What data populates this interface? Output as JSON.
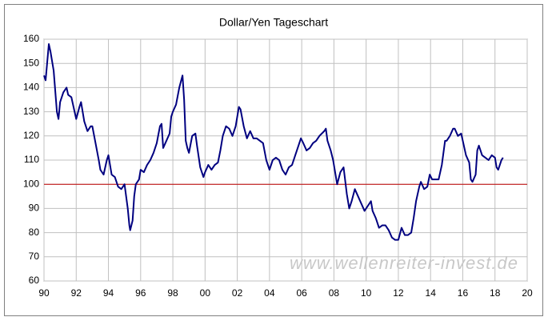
{
  "chart_data": {
    "type": "line",
    "title": "Dollar/Yen Tageschart",
    "watermark": "www.wellenreiter-invest.de",
    "color": "#000080",
    "grid": true,
    "hline": {
      "value": 100,
      "color": "#c00000"
    },
    "xlim": [
      1990,
      2020
    ],
    "xticks": [
      {
        "value": 1990,
        "label": "90"
      },
      {
        "value": 1992,
        "label": "92"
      },
      {
        "value": 1994,
        "label": "94"
      },
      {
        "value": 1996,
        "label": "96"
      },
      {
        "value": 1998,
        "label": "98"
      },
      {
        "value": 2000,
        "label": "00"
      },
      {
        "value": 2002,
        "label": "02"
      },
      {
        "value": 2004,
        "label": "04"
      },
      {
        "value": 2006,
        "label": "06"
      },
      {
        "value": 2008,
        "label": "08"
      },
      {
        "value": 2010,
        "label": "10"
      },
      {
        "value": 2012,
        "label": "12"
      },
      {
        "value": 2014,
        "label": "14"
      },
      {
        "value": 2016,
        "label": "16"
      },
      {
        "value": 2018,
        "label": "18"
      },
      {
        "value": 2020,
        "label": "20"
      }
    ],
    "ylim": [
      60,
      160
    ],
    "yticks": [
      60,
      70,
      80,
      90,
      100,
      110,
      120,
      130,
      140,
      150,
      160
    ],
    "x": [
      1990.0,
      1990.1,
      1990.3,
      1990.4,
      1990.6,
      1990.8,
      1990.9,
      1991.0,
      1991.2,
      1991.4,
      1991.5,
      1991.7,
      1991.9,
      1992.0,
      1992.2,
      1992.3,
      1992.5,
      1992.7,
      1992.9,
      1993.0,
      1993.2,
      1993.4,
      1993.5,
      1993.7,
      1993.9,
      1994.0,
      1994.2,
      1994.4,
      1994.6,
      1994.8,
      1995.0,
      1995.2,
      1995.3,
      1995.35,
      1995.5,
      1995.6,
      1995.7,
      1995.9,
      1996.0,
      1996.2,
      1996.4,
      1996.6,
      1996.8,
      1997.0,
      1997.2,
      1997.3,
      1997.4,
      1997.6,
      1997.8,
      1997.9,
      1998.0,
      1998.2,
      1998.4,
      1998.6,
      1998.7,
      1998.8,
      1998.9,
      1999.0,
      1999.2,
      1999.4,
      1999.5,
      1999.7,
      1999.9,
      2000.0,
      2000.2,
      2000.4,
      2000.6,
      2000.8,
      2000.95,
      2001.1,
      2001.3,
      2001.5,
      2001.7,
      2001.9,
      2002.1,
      2002.2,
      2002.4,
      2002.6,
      2002.8,
      2003.0,
      2003.2,
      2003.4,
      2003.6,
      2003.8,
      2004.0,
      2004.2,
      2004.4,
      2004.6,
      2004.8,
      2005.0,
      2005.2,
      2005.4,
      2005.6,
      2005.8,
      2005.95,
      2006.1,
      2006.3,
      2006.5,
      2006.7,
      2006.9,
      2007.1,
      2007.4,
      2007.5,
      2007.6,
      2007.8,
      2007.95,
      2008.1,
      2008.2,
      2008.4,
      2008.6,
      2008.8,
      2008.95,
      2009.1,
      2009.3,
      2009.5,
      2009.7,
      2009.9,
      2010.1,
      2010.3,
      2010.4,
      2010.6,
      2010.8,
      2011.0,
      2011.2,
      2011.4,
      2011.6,
      2011.8,
      2012.0,
      2012.2,
      2012.4,
      2012.6,
      2012.8,
      2012.95,
      2013.1,
      2013.3,
      2013.4,
      2013.6,
      2013.8,
      2013.95,
      2014.1,
      2014.3,
      2014.5,
      2014.7,
      2014.9,
      2015.0,
      2015.2,
      2015.4,
      2015.5,
      2015.7,
      2015.9,
      2016.0,
      2016.2,
      2016.4,
      2016.5,
      2016.6,
      2016.8,
      2016.9,
      2017.0,
      2017.2,
      2017.4,
      2017.6,
      2017.8,
      2018.0,
      2018.1,
      2018.2,
      2018.4,
      2018.5
    ],
    "values": [
      145,
      143,
      158,
      155,
      147,
      130,
      127,
      134,
      138,
      140,
      137,
      136,
      130,
      127,
      132,
      134,
      126,
      122,
      124,
      124,
      117,
      110,
      106,
      104,
      110,
      112,
      104,
      103,
      99,
      98,
      100,
      90,
      83,
      81,
      85,
      95,
      100,
      102,
      106,
      105,
      108,
      110,
      113,
      117,
      124,
      125,
      115,
      118,
      121,
      128,
      130,
      133,
      140,
      145,
      135,
      118,
      115,
      113,
      120,
      121,
      116,
      107,
      103,
      105,
      108,
      106,
      108,
      109,
      114,
      120,
      124,
      123,
      120,
      124,
      132,
      131,
      124,
      119,
      122,
      119,
      119,
      118,
      117,
      110,
      106,
      110,
      111,
      110,
      106,
      104,
      107,
      108,
      112,
      116,
      119,
      117,
      114,
      115,
      117,
      118,
      120,
      122,
      123,
      118,
      114,
      110,
      104,
      100,
      105,
      107,
      96,
      90,
      93,
      98,
      95,
      92,
      89,
      91,
      93,
      89,
      86,
      82,
      83,
      83,
      81,
      78,
      77,
      77,
      82,
      79,
      79,
      80,
      86,
      93,
      99,
      101,
      98,
      99,
      104,
      102,
      102,
      102,
      108,
      118,
      118,
      120,
      123,
      123,
      120,
      121,
      118,
      112,
      109,
      102,
      101,
      104,
      114,
      116,
      112,
      111,
      110,
      112,
      111,
      107,
      106,
      110,
      111
    ]
  }
}
